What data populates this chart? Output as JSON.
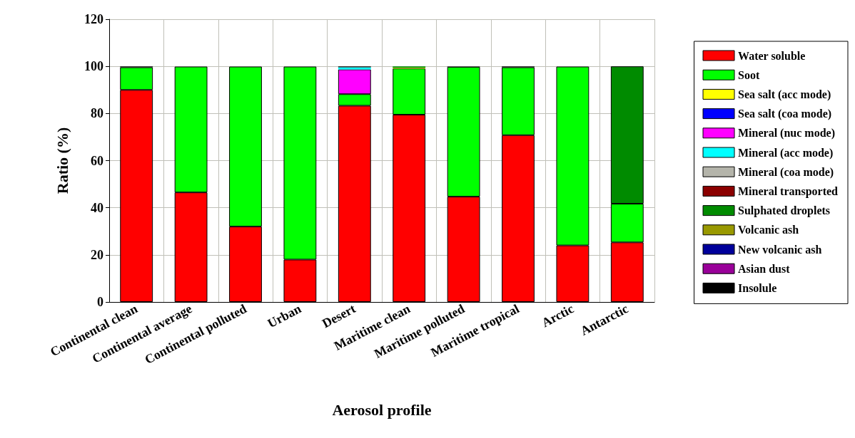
{
  "chart_data": {
    "type": "bar",
    "stacked": true,
    "xlabel": "Aerosol profile",
    "ylabel": "Ratio (%)",
    "ylim": [
      0,
      120
    ],
    "yticks": [
      0,
      20,
      40,
      60,
      80,
      100,
      120
    ],
    "grid": true,
    "legend": "right",
    "categories": [
      "Continental clean",
      "Continental average",
      "Continental polluted",
      "Urban",
      "Desert",
      "Maritime clean",
      "Maritime polluted",
      "Maritime tropical",
      "Arctic",
      "Antarctic"
    ],
    "series": [
      {
        "name": "Water soluble",
        "color": "#ff0000",
        "values": [
          90,
          46.5,
          32,
          18,
          83.3,
          79.5,
          44.7,
          70.8,
          24,
          25.3
        ]
      },
      {
        "name": "Soot",
        "color": "#00ff00",
        "values": [
          9.6,
          53.4,
          67.9,
          81.9,
          4.9,
          19.6,
          55.1,
          28.8,
          75.9,
          16.4
        ]
      },
      {
        "name": "Sea salt (acc mode)",
        "color": "#ffff00",
        "values": [
          0,
          0,
          0,
          0,
          0,
          0.3,
          0,
          0,
          0,
          0
        ]
      },
      {
        "name": "Sea salt (coa mode)",
        "color": "#0000ff",
        "values": [
          0,
          0,
          0,
          0,
          0,
          0,
          0,
          0,
          0,
          0
        ]
      },
      {
        "name": "Mineral (nuc mode)",
        "color": "#ff00ff",
        "values": [
          0,
          0,
          0,
          0,
          10.5,
          0,
          0,
          0,
          0,
          0
        ]
      },
      {
        "name": "Mineral (acc mode)",
        "color": "#00ffff",
        "values": [
          0,
          0,
          0,
          0,
          0.9,
          0,
          0,
          0,
          0,
          0
        ]
      },
      {
        "name": "Mineral (coa mode)",
        "color": "#b4b4aa",
        "values": [
          0,
          0,
          0,
          0,
          0,
          0,
          0,
          0,
          0,
          0
        ]
      },
      {
        "name": "Mineral transported",
        "color": "#8b0000",
        "values": [
          0,
          0,
          0,
          0,
          0,
          0,
          0,
          0,
          0,
          0
        ]
      },
      {
        "name": "Sulphated droplets",
        "color": "#008b00",
        "values": [
          0,
          0,
          0,
          0,
          0,
          0.6,
          0,
          0,
          0,
          58.3
        ]
      },
      {
        "name": "Volcanic ash",
        "color": "#999900",
        "values": [
          0,
          0,
          0,
          0,
          0,
          0,
          0,
          0,
          0,
          0
        ]
      },
      {
        "name": "New volcanic ash",
        "color": "#00009b",
        "values": [
          0,
          0,
          0,
          0,
          0,
          0,
          0,
          0,
          0,
          0
        ]
      },
      {
        "name": "Asian dust",
        "color": "#990099",
        "values": [
          0,
          0,
          0,
          0,
          0,
          0,
          0,
          0,
          0,
          0
        ]
      },
      {
        "name": "Insolule",
        "color": "#000000",
        "values": [
          0.4,
          null,
          null,
          null,
          0.4,
          0,
          0.2,
          0.4,
          null,
          0
        ]
      }
    ]
  }
}
